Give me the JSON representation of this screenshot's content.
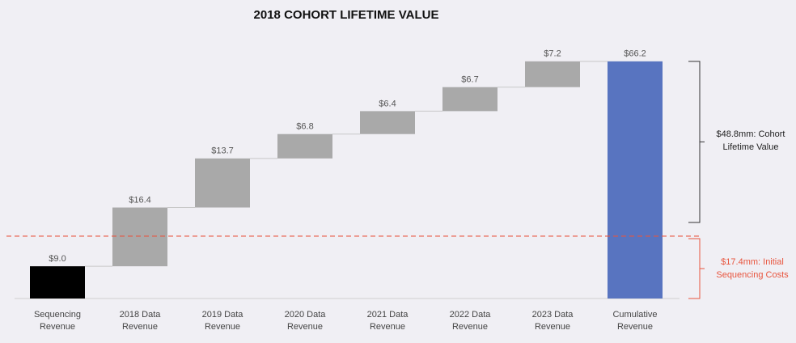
{
  "chart_data": {
    "type": "waterfall",
    "title": "2018 COHORT LIFETIME VALUE",
    "categories": [
      "Sequencing Revenue",
      "2018 Data Revenue",
      "2019 Data Revenue",
      "2020 Data Revenue",
      "2021 Data Revenue",
      "2022 Data Revenue",
      "2023 Data Revenue",
      "Cumulative Revenue"
    ],
    "values": [
      9.0,
      16.4,
      13.7,
      6.8,
      6.4,
      6.7,
      7.2,
      66.2
    ],
    "value_labels": [
      "$9.0",
      "$16.4",
      "$13.7",
      "$6.8",
      "$6.4",
      "$6.7",
      "$7.2",
      "$66.2"
    ],
    "colors": [
      "#000000",
      "#a9a9a9",
      "#a9a9a9",
      "#a9a9a9",
      "#a9a9a9",
      "#a9a9a9",
      "#a9a9a9",
      "#5874c0"
    ],
    "ylim": [
      0,
      70
    ],
    "reference_line": {
      "value": 17.4,
      "label": "$17.4mm: Initial Sequencing Costs",
      "color": "#e8553e"
    },
    "bracket": {
      "from": 17.4,
      "to": 66.2,
      "label": "$48.8mm: Cohort Lifetime Value",
      "color": "#333333"
    }
  }
}
